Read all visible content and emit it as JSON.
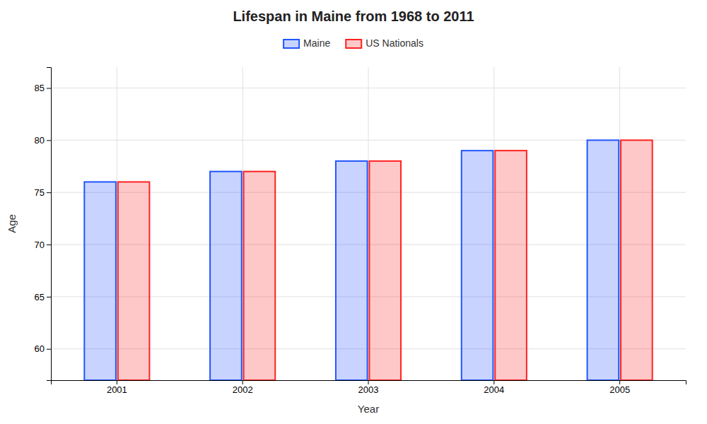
{
  "chart_data": {
    "type": "bar",
    "title": "Lifespan in Maine from 1968 to 2011",
    "xlabel": "Year",
    "ylabel": "Age",
    "categories": [
      "2001",
      "2002",
      "2003",
      "2004",
      "2005"
    ],
    "series": [
      {
        "name": "Maine",
        "color": "#2255ff",
        "values": [
          76,
          77,
          78,
          79,
          80
        ]
      },
      {
        "name": "US Nationals",
        "color": "#ff2222",
        "values": [
          76,
          77,
          78,
          79,
          80
        ]
      }
    ],
    "ylim": [
      57,
      87
    ],
    "yticks": [
      60,
      65,
      70,
      75,
      80,
      85
    ],
    "grid": true,
    "legend": "top"
  }
}
